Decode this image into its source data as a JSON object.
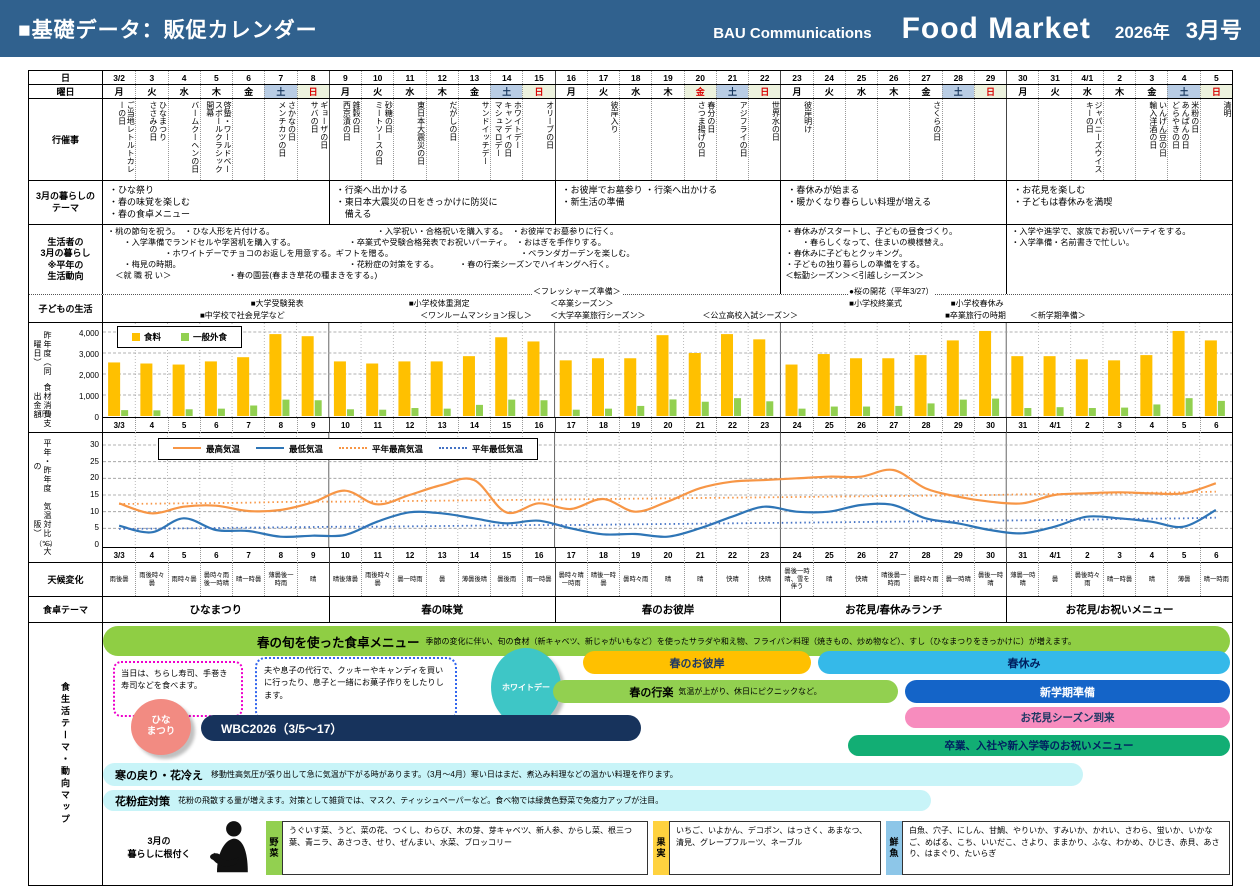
{
  "header": {
    "title": "■基礎データ：販促カレンダー",
    "company": "BAU Communications",
    "brand": "Food Market",
    "year": "2026年",
    "issue": "3月号"
  },
  "row_labels": {
    "date": "日",
    "weekday": "曜日",
    "events": "行催事",
    "theme_lines": [
      "3月の暮らしの",
      "テーマ"
    ],
    "lifestyle_lines": [
      "生活者の",
      "3月の暮らし",
      "※平年の",
      "生活動向"
    ],
    "kids": "子どもの生活",
    "food_axis_right": "昨年度（同曜日）",
    "food_axis_left": "食材消費支出金額",
    "food_unit": "（円）",
    "temp_axis_right": "平年・昨年度の",
    "temp_axis_left": "気温対比（大阪）",
    "temp_unit": "（℃）",
    "weather": "天候変化",
    "table_theme": "食卓テーマ",
    "map": "食生活テーマ・動向マップ"
  },
  "calendar": {
    "days": [
      {
        "d": "3/2",
        "w": "月",
        "t": "n",
        "ev": [
          "ご当地レトルトカレーの日"
        ]
      },
      {
        "d": "3",
        "w": "火",
        "t": "n",
        "ev": [
          "ひなまつり",
          "ささみの日"
        ]
      },
      {
        "d": "4",
        "w": "水",
        "t": "n",
        "ev": [
          "バームクーヘンの日"
        ]
      },
      {
        "d": "5",
        "w": "木",
        "t": "n",
        "ev": [
          "啓蟄・ワールドベースボールクラシック開幕"
        ]
      },
      {
        "d": "6",
        "w": "金",
        "t": "n",
        "ev": []
      },
      {
        "d": "7",
        "w": "土",
        "t": "s",
        "ev": [
          "さかなの日",
          "メンチカツの日"
        ]
      },
      {
        "d": "8",
        "w": "日",
        "t": "h",
        "ev": [
          "ギョーザの日",
          "サバの日"
        ]
      },
      {
        "d": "9",
        "w": "月",
        "t": "n",
        "ev": [
          "雑穀の日",
          "西京漬の日"
        ]
      },
      {
        "d": "10",
        "w": "火",
        "t": "n",
        "ev": [
          "砂糖の日",
          "ミートソースの日"
        ]
      },
      {
        "d": "11",
        "w": "水",
        "t": "n",
        "ev": [
          "東日本大震災の日"
        ]
      },
      {
        "d": "12",
        "w": "木",
        "t": "n",
        "ev": [
          "だがしの日"
        ]
      },
      {
        "d": "13",
        "w": "金",
        "t": "n",
        "ev": [
          "サンドイッチデー"
        ]
      },
      {
        "d": "14",
        "w": "土",
        "t": "s",
        "ev": [
          "ホワイトデー",
          "キャンディの日",
          "マシュマロデー"
        ]
      },
      {
        "d": "15",
        "w": "日",
        "t": "h",
        "ev": [
          "オリーブの日"
        ]
      },
      {
        "d": "16",
        "w": "月",
        "t": "n",
        "ev": []
      },
      {
        "d": "17",
        "w": "火",
        "t": "n",
        "ev": [
          "彼岸入り"
        ]
      },
      {
        "d": "18",
        "w": "水",
        "t": "n",
        "ev": []
      },
      {
        "d": "19",
        "w": "木",
        "t": "n",
        "ev": []
      },
      {
        "d": "20",
        "w": "金",
        "t": "h",
        "ev": [
          "春分の日",
          "さつま揚げの日"
        ]
      },
      {
        "d": "21",
        "w": "土",
        "t": "s",
        "ev": [
          "アジフライの日"
        ]
      },
      {
        "d": "22",
        "w": "日",
        "t": "h",
        "ev": [
          "世界水の日"
        ]
      },
      {
        "d": "23",
        "w": "月",
        "t": "n",
        "ev": [
          "彼岸明け"
        ]
      },
      {
        "d": "24",
        "w": "火",
        "t": "n",
        "ev": []
      },
      {
        "d": "25",
        "w": "水",
        "t": "n",
        "ev": []
      },
      {
        "d": "26",
        "w": "木",
        "t": "n",
        "ev": []
      },
      {
        "d": "27",
        "w": "金",
        "t": "n",
        "ev": [
          "さくらの日"
        ]
      },
      {
        "d": "28",
        "w": "土",
        "t": "s",
        "ev": []
      },
      {
        "d": "29",
        "w": "日",
        "t": "h",
        "ev": []
      },
      {
        "d": "30",
        "w": "月",
        "t": "n",
        "ev": []
      },
      {
        "d": "31",
        "w": "火",
        "t": "n",
        "ev": []
      },
      {
        "d": "4/1",
        "w": "水",
        "t": "n",
        "ev": [
          "ジャパニーズウイスキーの日"
        ]
      },
      {
        "d": "2",
        "w": "木",
        "t": "n",
        "ev": []
      },
      {
        "d": "3",
        "w": "金",
        "t": "n",
        "ev": [
          "いんげん豆の日",
          "輸入洋酒の日"
        ]
      },
      {
        "d": "4",
        "w": "土",
        "t": "s",
        "ev": [
          "米粉の日",
          "あんぱんの日",
          "どらやきの日"
        ]
      },
      {
        "d": "5",
        "w": "日",
        "t": "h",
        "ev": [
          "清明"
        ]
      }
    ],
    "week_themes": [
      [
        "・ひな祭り",
        "・春の味覚を楽しむ",
        "・春の食卓メニュー"
      ],
      [
        "・行楽へ出かける",
        "・東日本大震災の日をきっかけに防災に",
        "　備える"
      ],
      [
        "・お彼岸でお墓参り ・行楽へ出かける",
        "・新生活の準備"
      ],
      [
        "・春休みが始まる",
        "・暖かくなり春らしい料理が増える"
      ],
      [
        "・お花見を楽しむ",
        "・子どもは春休みを満喫"
      ]
    ],
    "lifestyle_blocks": [
      [
        "・桃の節句を祝う。　・ひな人形を片付ける。　　　　　　　　　　　　　・入学祝い・合格祝いを購入する。　・お彼岸でお墓参りに行く。",
        "　　・入学準備でランドセルや学習机を購入する。　　　　　　　・卒業式や受験合格発表でお祝いパーティ。　・おはぎを手作りする。",
        "　　　　　　　・ホワイトデーでチョコのお返しを用意する。ギフトを贈る。　　　　　　　　　　　　　　　　・ベランダガーデンを楽しむ。",
        "　　・梅見の時期。　　　　　　　　　　　　　　　　　　　　　・花粉症の対策をする。　　　・春の行楽シーズンでハイキングへ行く。",
        "　＜就 職 祝 い＞　　　　　　　・春の園芸(春まき草花の種まきをする。)"
      ],
      [
        "・春休みがスタートし、子どもの昼食づくり。",
        "　　・春らしくなって、住まいの模様替え。",
        "・春休みに子どもとクッキング。",
        "・子どもの独り暮らしの準備をする。",
        "＜転勤シーズン＞＜引越しシーズン＞"
      ],
      [
        "・入学や進学で、家族でお祝いパーティをする。",
        "・入学準備・名前書きで忙しい。"
      ]
    ],
    "kids_items": [
      {
        "t": "＜フレッシャーズ準備＞",
        "x": 38,
        "r": -1
      },
      {
        "t": "●桜の開花（平年3/27）",
        "x": 66,
        "r": -1
      },
      {
        "t": "■大学受験発表",
        "x": 13,
        "r": 0
      },
      {
        "t": "■小学校体重測定",
        "x": 27,
        "r": 0
      },
      {
        "t": "＜卒業シーズン＞",
        "x": 39.5,
        "r": 0
      },
      {
        "t": "■小学校終業式",
        "x": 66,
        "r": 0
      },
      {
        "t": "■小学校春休み",
        "x": 75,
        "r": 0
      },
      {
        "t": "■中学校で社会見学など",
        "x": 8.5,
        "r": 1
      },
      {
        "t": "＜ワンルームマンション探し＞",
        "x": 28,
        "r": 1
      },
      {
        "t": "＜大学卒業旅行シーズン＞",
        "x": 39.5,
        "r": 1
      },
      {
        "t": "＜公立高校入試シーズン＞",
        "x": 53,
        "r": 1
      },
      {
        "t": "■卒業旅行の時期",
        "x": 74.5,
        "r": 1
      },
      {
        "t": "＜新学期準備＞",
        "x": 82,
        "r": 1
      }
    ],
    "table_themes": [
      "ひなまつり",
      "春の味覚",
      "春のお彼岸",
      "お花見/春休みランチ",
      "お花見/お祝いメニュー"
    ]
  },
  "chart_data": [
    {
      "type": "bar",
      "title": "食材消費 昨年度（同曜日）支出金額",
      "ylabel": "（円）",
      "ylim": [
        0,
        4000
      ],
      "yticks": [
        0,
        1000,
        2000,
        3000,
        4000
      ],
      "legend_position": "top-left",
      "grid": true,
      "x": [
        "3/3",
        "4",
        "5",
        "6",
        "7",
        "8",
        "9",
        "10",
        "11",
        "12",
        "13",
        "14",
        "15",
        "16",
        "17",
        "18",
        "19",
        "20",
        "21",
        "22",
        "23",
        "24",
        "25",
        "26",
        "27",
        "28",
        "29",
        "30",
        "31",
        "4/1",
        "2",
        "3",
        "4",
        "5",
        "6"
      ],
      "series": [
        {
          "name": "食料",
          "color": "#FFC000",
          "values": [
            2550,
            2500,
            2450,
            2600,
            2800,
            3900,
            3800,
            2600,
            2500,
            2600,
            2600,
            2850,
            3750,
            3550,
            2650,
            2750,
            2750,
            3850,
            3000,
            3900,
            3650,
            2450,
            2950,
            2750,
            2750,
            2900,
            3600,
            4050,
            2850,
            2850,
            2700,
            2650,
            2900,
            4050,
            3600
          ]
        },
        {
          "name": "一般外食",
          "color": "#92D050",
          "values": [
            280,
            270,
            320,
            350,
            500,
            780,
            750,
            320,
            300,
            380,
            350,
            530,
            780,
            750,
            300,
            350,
            480,
            790,
            680,
            850,
            700,
            350,
            450,
            450,
            480,
            600,
            780,
            830,
            380,
            420,
            380,
            400,
            550,
            850,
            720
          ]
        }
      ]
    },
    {
      "type": "line",
      "title": "気温 平年・昨年度対比（大阪）",
      "ylabel": "（℃）",
      "ylim": [
        0,
        30
      ],
      "yticks": [
        0,
        5,
        10,
        15,
        20,
        25,
        30
      ],
      "legend_position": "top-left",
      "grid": true,
      "x": [
        "3/3",
        "4",
        "5",
        "6",
        "7",
        "8",
        "9",
        "10",
        "11",
        "12",
        "13",
        "14",
        "15",
        "16",
        "17",
        "18",
        "19",
        "20",
        "21",
        "22",
        "23",
        "24",
        "25",
        "26",
        "27",
        "28",
        "29",
        "30",
        "31",
        "4/1",
        "2",
        "3",
        "4",
        "5",
        "6"
      ],
      "series": [
        {
          "name": "最高気温",
          "color": "#F79646",
          "style": "solid",
          "values": [
            12.5,
            9.5,
            11.5,
            11.8,
            10.2,
            10.5,
            12.8,
            16.3,
            12.2,
            15,
            18,
            19.5,
            9.8,
            12.5,
            10.8,
            13.8,
            10,
            13,
            17,
            19,
            19.5,
            20,
            20.5,
            20.5,
            22.5,
            17,
            14.5,
            13,
            12.5,
            15,
            15.5,
            15.8,
            15.5,
            15.5,
            18.5
          ]
        },
        {
          "name": "最低気温",
          "color": "#2E75B6",
          "style": "solid",
          "values": [
            5.8,
            3.8,
            8,
            4.5,
            4.2,
            2.5,
            2.8,
            3,
            7,
            9.8,
            9.5,
            8,
            6.5,
            7.3,
            5,
            3.2,
            3.3,
            2.5,
            5,
            8.5,
            11.5,
            10,
            10,
            12,
            12,
            8,
            6.5,
            4.5,
            3.5,
            5.5,
            8.5,
            8,
            7,
            5.5,
            10.5
          ]
        },
        {
          "name": "平年最高気温",
          "color": "#F79646",
          "style": "dotted",
          "values": [
            12.3,
            12.4,
            12.5,
            12.6,
            12.7,
            12.9,
            13,
            13,
            13.1,
            13.2,
            13.3,
            13.4,
            13.5,
            13.6,
            13.7,
            13.8,
            13.9,
            14,
            14.1,
            14.2,
            14.3,
            14.4,
            14.5,
            14.6,
            14.7,
            14.8,
            14.9,
            15,
            15.2,
            15.3,
            15.4,
            15.5,
            15.7,
            15.8,
            16
          ]
        },
        {
          "name": "平年最低気温",
          "color": "#4472C4",
          "style": "dotted",
          "values": [
            4.8,
            4.9,
            5,
            5.1,
            5.2,
            5.3,
            5.4,
            5.5,
            5.5,
            5.6,
            5.7,
            5.8,
            5.9,
            6,
            6,
            6.1,
            6.2,
            6.3,
            6.4,
            6.5,
            6.6,
            6.7,
            6.8,
            6.9,
            7,
            7.1,
            7.2,
            7.3,
            7.4,
            7.5,
            7.6,
            7.8,
            7.9,
            8,
            8.2
          ]
        }
      ]
    }
  ],
  "weather_values": [
    "雨後曇",
    "雨後時々曇",
    "雨時々曇",
    "曇時々雨後一時晴",
    "晴一時曇",
    "薄曇後一時雨",
    "晴",
    "晴後薄曇",
    "雨後時々曇",
    "曇一時雨",
    "曇",
    "薄曇後晴",
    "曇後雨",
    "雨一時曇",
    "曇時々晴一時雨",
    "晴後一時曇",
    "曇時々雨",
    "晴",
    "晴",
    "快晴",
    "快晴",
    "曇後一時晴、雪を伴う",
    "晴",
    "快晴",
    "晴後曇一時雨",
    "曇時々雨",
    "曇一時晴",
    "曇後一時晴",
    "薄曇一時晴",
    "曇",
    "曇後時々雨",
    "晴一時曇",
    "晴",
    "薄曇",
    "晴一時雨"
  ],
  "map": {
    "banner_title": "春の旬を使った食卓メニュー",
    "banner_desc": "季節の変化に伴い、旬の食材（新キャベツ、新じゃがいもなど）を使ったサラダや和え物、フライパン料理（焼きもの、炒め物など）、すし（ひなまつりをきっかけに）が増えます。",
    "hina_note": "当日は、ちらし寿司、手巻き寿司などを食べます。",
    "whiteday_note": "夫や息子の代行で、クッキーやキャンディを買いに行ったり、息子と一緒にお菓子作りをしたりします。",
    "whiteday_circle": "ホワイトデー",
    "hina_circle_lines": [
      "ひな",
      "まつり"
    ],
    "pills": {
      "ohigan": "春のお彼岸",
      "haruyasumi": "春休み",
      "kouraku_title": "春の行楽",
      "kouraku_desc": "気温が上がり、休日にピクニックなど。",
      "shingakki": "新学期準備",
      "wbc": "WBC2026（3/5～17）",
      "ohanami": "お花見シーズン到来",
      "sotsugyo": "卒業、入社や新入学等のお祝いメニュー"
    },
    "notes": [
      {
        "title": "寒の戻り・花冷え",
        "desc": "移動性高気圧が張り出して急に気温が下がる時があります。（3月～4月）寒い日はまだ、煮込み料理などの温かい料理を作ります。"
      },
      {
        "title": "花粉症対策",
        "desc": "花粉の飛散する量が増えます。対策として雑貨では、マスク、ティッシュペーパーなど。食べ物では緑黄色野菜で免疫力アップが注目。"
      }
    ],
    "rooted_lines": [
      "3月の",
      "暮らしに根付く"
    ],
    "foods": [
      {
        "label": "野菜",
        "color": "#92D050",
        "items": "うぐいす菜、うど、菜の花、つくし、わらび、木の芽、芽キャベツ、新人参、からし菜、根三つ葉、青ニラ、あさつき、せり、ぜんまい、水菜、ブロッコリー"
      },
      {
        "label": "果実",
        "color": "#FFD23F",
        "items": "いちご、いよかん、デコポン、はっさく、あまなつ、清見、グレープフルーツ、ネーブル"
      },
      {
        "label": "鮮魚",
        "color": "#8DC6E8",
        "items": "白魚、穴子、にしん、甘鯛、やりいか、すみいか、かれい、さわら、蛍いか、いかなご、めばる、こち、いいだこ、さより、ままかり、ふな、わかめ、ひじき、赤貝、あさり、はまぐり、たいらぎ"
      }
    ]
  },
  "colors": {
    "header_bg": "#30618E",
    "saturday_bg": "#B9CDE5",
    "sunday_bg": "#EDF2DE",
    "holiday_text": "#D90000",
    "bar_food": "#FFC000",
    "bar_dine": "#92D050",
    "temp_high": "#F79646",
    "temp_low": "#2E75B6"
  }
}
